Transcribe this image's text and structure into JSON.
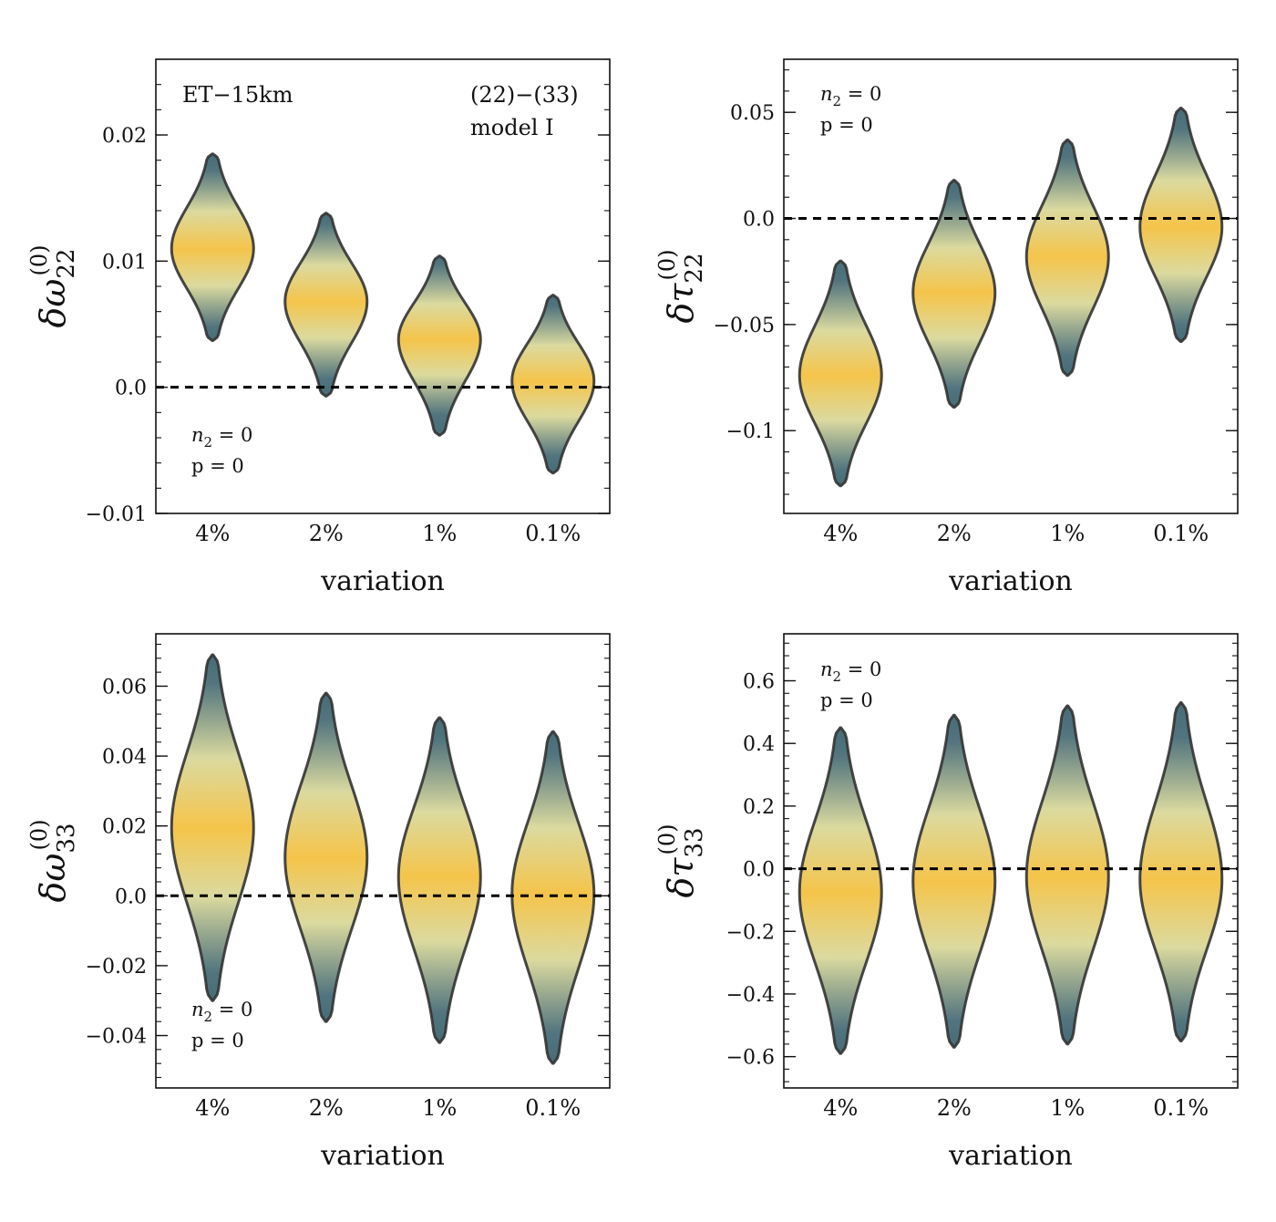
{
  "figure": {
    "annotations": {
      "detector": "ET−15km",
      "modes": "(22)−(33)",
      "model": "model I"
    },
    "gradient": {
      "center": "#f5c44a",
      "mid": "#d9d89a",
      "edge": "#3e6570",
      "outline": "#333333",
      "reference_line": "#000000"
    }
  },
  "chart_data": [
    {
      "type": "violin",
      "panel": "top-left",
      "ylabel": {
        "symbol": "δω",
        "subscript": "22",
        "superscript": "(0)"
      },
      "xlabel": "variation",
      "categories": [
        "4%",
        "2%",
        "1%",
        "0.1%"
      ],
      "ylim": [
        -0.01,
        0.026
      ],
      "yticks": [
        -0.01,
        0.0,
        0.01,
        0.02
      ],
      "ytick_labels": [
        "−0.01",
        "0.0",
        "0.01",
        "0.02"
      ],
      "reference_line": 0.0,
      "legend_text": [
        "n",
        "2",
        " = 0",
        "p = 0"
      ],
      "legend_position": "bottom-left",
      "series": [
        {
          "name": "4%",
          "median": 0.011,
          "min": 0.0037,
          "max": 0.0185,
          "lower_width": 0.017,
          "upper_width": 0.042
        },
        {
          "name": "2%",
          "median": 0.0068,
          "min": -0.0007,
          "max": 0.0138,
          "lower_width": 0.02,
          "upper_width": 0.042
        },
        {
          "name": "1%",
          "median": 0.0038,
          "min": -0.0038,
          "max": 0.0104,
          "lower_width": 0.02,
          "upper_width": 0.042
        },
        {
          "name": "0.1%",
          "median": 0.0005,
          "min": -0.0068,
          "max": 0.0073,
          "lower_width": 0.02,
          "upper_width": 0.042
        }
      ]
    },
    {
      "type": "violin",
      "panel": "top-right",
      "ylabel": {
        "symbol": "δτ",
        "subscript": "22",
        "superscript": "(0)"
      },
      "xlabel": "variation",
      "categories": [
        "4%",
        "2%",
        "1%",
        "0.1%"
      ],
      "ylim": [
        -0.139,
        0.075
      ],
      "yticks": [
        -0.1,
        -0.05,
        0.0,
        0.05
      ],
      "ytick_labels": [
        "−0.1",
        "−0.05",
        "0.0",
        "0.05"
      ],
      "reference_line": 0.0,
      "legend_text": [
        "n",
        "2",
        " = 0",
        "p = 0"
      ],
      "legend_position": "top-left",
      "series": [
        {
          "name": "4%",
          "median": -0.074,
          "min": -0.126,
          "max": -0.02,
          "lower_width": 0.032,
          "upper_width": 0.03
        },
        {
          "name": "2%",
          "median": -0.035,
          "min": -0.089,
          "max": 0.018,
          "lower_width": 0.032,
          "upper_width": 0.03
        },
        {
          "name": "1%",
          "median": -0.018,
          "min": -0.074,
          "max": 0.037,
          "lower_width": 0.032,
          "upper_width": 0.03
        },
        {
          "name": "0.1%",
          "median": -0.004,
          "min": -0.058,
          "max": 0.052,
          "lower_width": 0.032,
          "upper_width": 0.03
        }
      ]
    },
    {
      "type": "violin",
      "panel": "bottom-left",
      "ylabel": {
        "symbol": "δω",
        "subscript": "33",
        "superscript": "(0)"
      },
      "xlabel": "variation",
      "categories": [
        "4%",
        "2%",
        "1%",
        "0.1%"
      ],
      "ylim": [
        -0.055,
        0.075
      ],
      "yticks": [
        -0.04,
        -0.02,
        0.0,
        0.02,
        0.04,
        0.06
      ],
      "ytick_labels": [
        "−0.04",
        "−0.02",
        "0.0",
        "0.02",
        "0.04",
        "0.06"
      ],
      "reference_line": 0.0,
      "legend_text": [
        "n",
        "2",
        " = 0",
        "p = 0"
      ],
      "legend_position": "bottom-left",
      "series": [
        {
          "name": "4%",
          "median": 0.0195,
          "min": -0.03,
          "max": 0.069,
          "lower_width": 0.04,
          "upper_width": 0.038
        },
        {
          "name": "2%",
          "median": 0.011,
          "min": -0.036,
          "max": 0.058,
          "lower_width": 0.04,
          "upper_width": 0.038
        },
        {
          "name": "1%",
          "median": 0.0055,
          "min": -0.042,
          "max": 0.051,
          "lower_width": 0.04,
          "upper_width": 0.038
        },
        {
          "name": "0.1%",
          "median": 0.0005,
          "min": -0.048,
          "max": 0.047,
          "lower_width": 0.04,
          "upper_width": 0.038
        }
      ]
    },
    {
      "type": "violin",
      "panel": "bottom-right",
      "ylabel": {
        "symbol": "δτ",
        "subscript": "33",
        "superscript": "(0)"
      },
      "xlabel": "variation",
      "categories": [
        "4%",
        "2%",
        "1%",
        "0.1%"
      ],
      "ylim": [
        -0.7,
        0.75
      ],
      "yticks": [
        -0.6,
        -0.4,
        -0.2,
        0.0,
        0.2,
        0.4,
        0.6
      ],
      "ytick_labels": [
        "−0.6",
        "−0.4",
        "−0.2",
        "0.0",
        "0.2",
        "0.4",
        "0.6"
      ],
      "reference_line": 0.0,
      "legend_text": [
        "n",
        "2",
        " = 0",
        "p = 0"
      ],
      "legend_position": "top-left",
      "series": [
        {
          "name": "4%",
          "median": -0.075,
          "min": -0.59,
          "max": 0.45,
          "lower_width": 0.045,
          "upper_width": 0.038
        },
        {
          "name": "2%",
          "median": -0.04,
          "min": -0.57,
          "max": 0.49,
          "lower_width": 0.045,
          "upper_width": 0.038
        },
        {
          "name": "1%",
          "median": -0.025,
          "min": -0.56,
          "max": 0.52,
          "lower_width": 0.045,
          "upper_width": 0.038
        },
        {
          "name": "0.1%",
          "median": -0.035,
          "min": -0.55,
          "max": 0.53,
          "lower_width": 0.045,
          "upper_width": 0.038
        }
      ]
    }
  ]
}
